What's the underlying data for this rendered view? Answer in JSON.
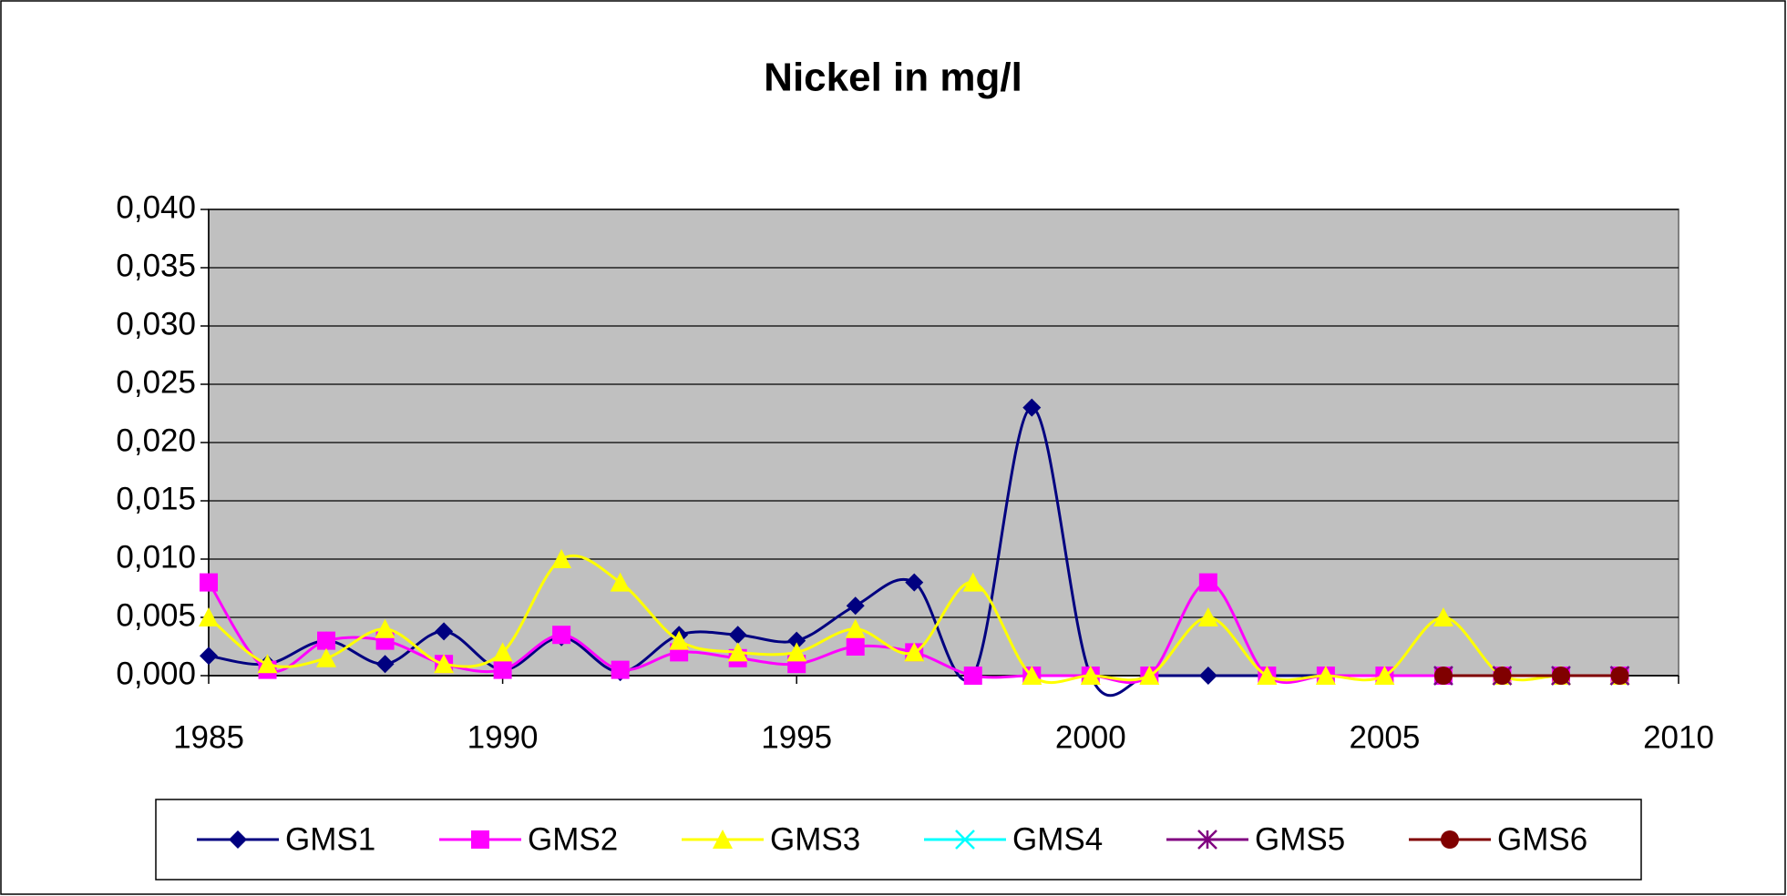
{
  "chart_data": {
    "type": "line",
    "title": "Nickel in mg/l",
    "x": [
      1985,
      1986,
      1987,
      1988,
      1989,
      1990,
      1991,
      1992,
      1993,
      1994,
      1995,
      1996,
      1997,
      1998,
      1999,
      2000,
      2001,
      2002,
      2003,
      2004,
      2005,
      2006,
      2007,
      2008,
      2009
    ],
    "series": [
      {
        "name": "GMS1",
        "color": "#000080",
        "marker": "diamond",
        "values": [
          0.0017,
          0.001,
          0.003,
          0.001,
          0.0038,
          0.0005,
          0.0033,
          0.0003,
          0.0035,
          0.0035,
          0.003,
          0.006,
          0.008,
          0,
          0.023,
          0,
          0,
          0,
          0,
          0,
          0,
          0,
          0,
          0,
          0
        ]
      },
      {
        "name": "GMS2",
        "color": "#ff00ff",
        "marker": "square",
        "values": [
          0.008,
          0.0005,
          0.003,
          0.003,
          0.001,
          0.0005,
          0.0035,
          0.0005,
          0.002,
          0.0015,
          0.001,
          0.0025,
          0.002,
          0,
          0,
          0,
          0,
          0.008,
          0,
          0,
          0,
          0,
          0,
          0,
          0
        ]
      },
      {
        "name": "GMS3",
        "color": "#ffff00",
        "marker": "triangle",
        "values": [
          0.005,
          0.001,
          0.0015,
          0.004,
          0.001,
          0.002,
          0.01,
          0.008,
          0.003,
          0.002,
          0.002,
          0.004,
          0.002,
          0.008,
          0,
          0,
          0,
          0.005,
          0,
          0,
          0,
          0.005,
          0,
          0,
          0
        ]
      },
      {
        "name": "GMS4",
        "color": "#00ffff",
        "marker": "x",
        "values": [
          null,
          null,
          null,
          null,
          null,
          null,
          null,
          null,
          null,
          null,
          null,
          null,
          null,
          null,
          null,
          null,
          null,
          null,
          null,
          null,
          null,
          0,
          0,
          0,
          0
        ]
      },
      {
        "name": "GMS5",
        "color": "#800080",
        "marker": "star",
        "values": [
          null,
          null,
          null,
          null,
          null,
          null,
          null,
          null,
          null,
          null,
          null,
          null,
          null,
          null,
          null,
          null,
          null,
          null,
          null,
          null,
          null,
          0,
          0,
          0,
          0
        ]
      },
      {
        "name": "GMS6",
        "color": "#800000",
        "marker": "circle",
        "values": [
          null,
          null,
          null,
          null,
          null,
          null,
          null,
          null,
          null,
          null,
          null,
          null,
          null,
          null,
          null,
          null,
          null,
          null,
          null,
          null,
          null,
          0,
          0,
          0,
          0
        ]
      }
    ],
    "xlim": [
      1985,
      2010
    ],
    "xticks": [
      1985,
      1990,
      1995,
      2000,
      2005,
      2010
    ],
    "ylim": [
      0,
      0.04
    ],
    "yticks": [
      {
        "value": 0,
        "label": "0,000"
      },
      {
        "value": 0.005,
        "label": "0,005"
      },
      {
        "value": 0.01,
        "label": "0,010"
      },
      {
        "value": 0.015,
        "label": "0,015"
      },
      {
        "value": 0.02,
        "label": "0,020"
      },
      {
        "value": 0.025,
        "label": "0,025"
      },
      {
        "value": 0.03,
        "label": "0,030"
      },
      {
        "value": 0.035,
        "label": "0,035"
      },
      {
        "value": 0.04,
        "label": "0,040"
      }
    ],
    "grid": true,
    "smooth": true,
    "legend": "bottom",
    "plot_background": "#c0c0c0"
  }
}
